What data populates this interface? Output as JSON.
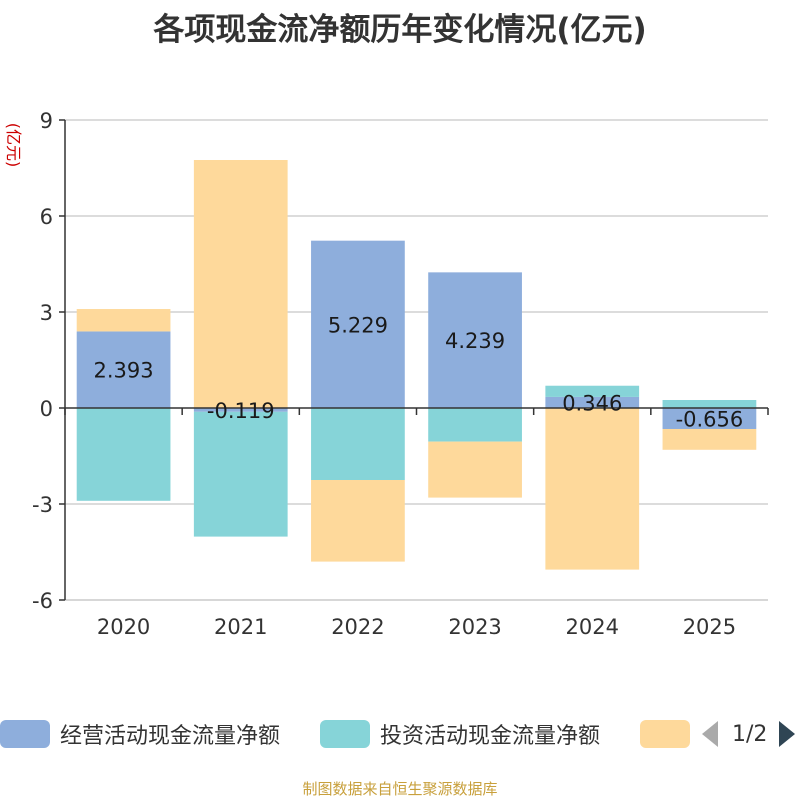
{
  "chart_data": {
    "type": "bar",
    "stacked": true,
    "title": "各项现金流净额历年变化情况(亿元)",
    "ylabel": "(亿元)",
    "xlabel": "",
    "ylim": [
      -6,
      9
    ],
    "yticks": [
      -6,
      -3,
      0,
      3,
      6,
      9
    ],
    "categories": [
      "2020",
      "2021",
      "2022",
      "2023",
      "2024",
      "2025"
    ],
    "series": [
      {
        "name": "经营活动现金流量净额",
        "color": "#8eaedc",
        "values": [
          2.393,
          -0.119,
          5.229,
          4.239,
          0.346,
          -0.656
        ],
        "data_labels": [
          "2.393",
          "-0.119",
          "5.229",
          "4.239",
          "0.346",
          "-0.656"
        ]
      },
      {
        "name": "投资活动现金流量净额",
        "color": "#86d4d8",
        "values": [
          -2.9,
          -3.9,
          -2.25,
          -1.05,
          0.35,
          0.25
        ]
      },
      {
        "name": "",
        "color": "#fed99b",
        "values": [
          0.7,
          7.75,
          -2.55,
          -1.75,
          -5.05,
          -0.65
        ]
      }
    ],
    "legend_position": "bottom",
    "grid": true
  },
  "legend": {
    "page_indicator": "1/2"
  },
  "source_note": "制图数据来自恒生聚源数据库"
}
